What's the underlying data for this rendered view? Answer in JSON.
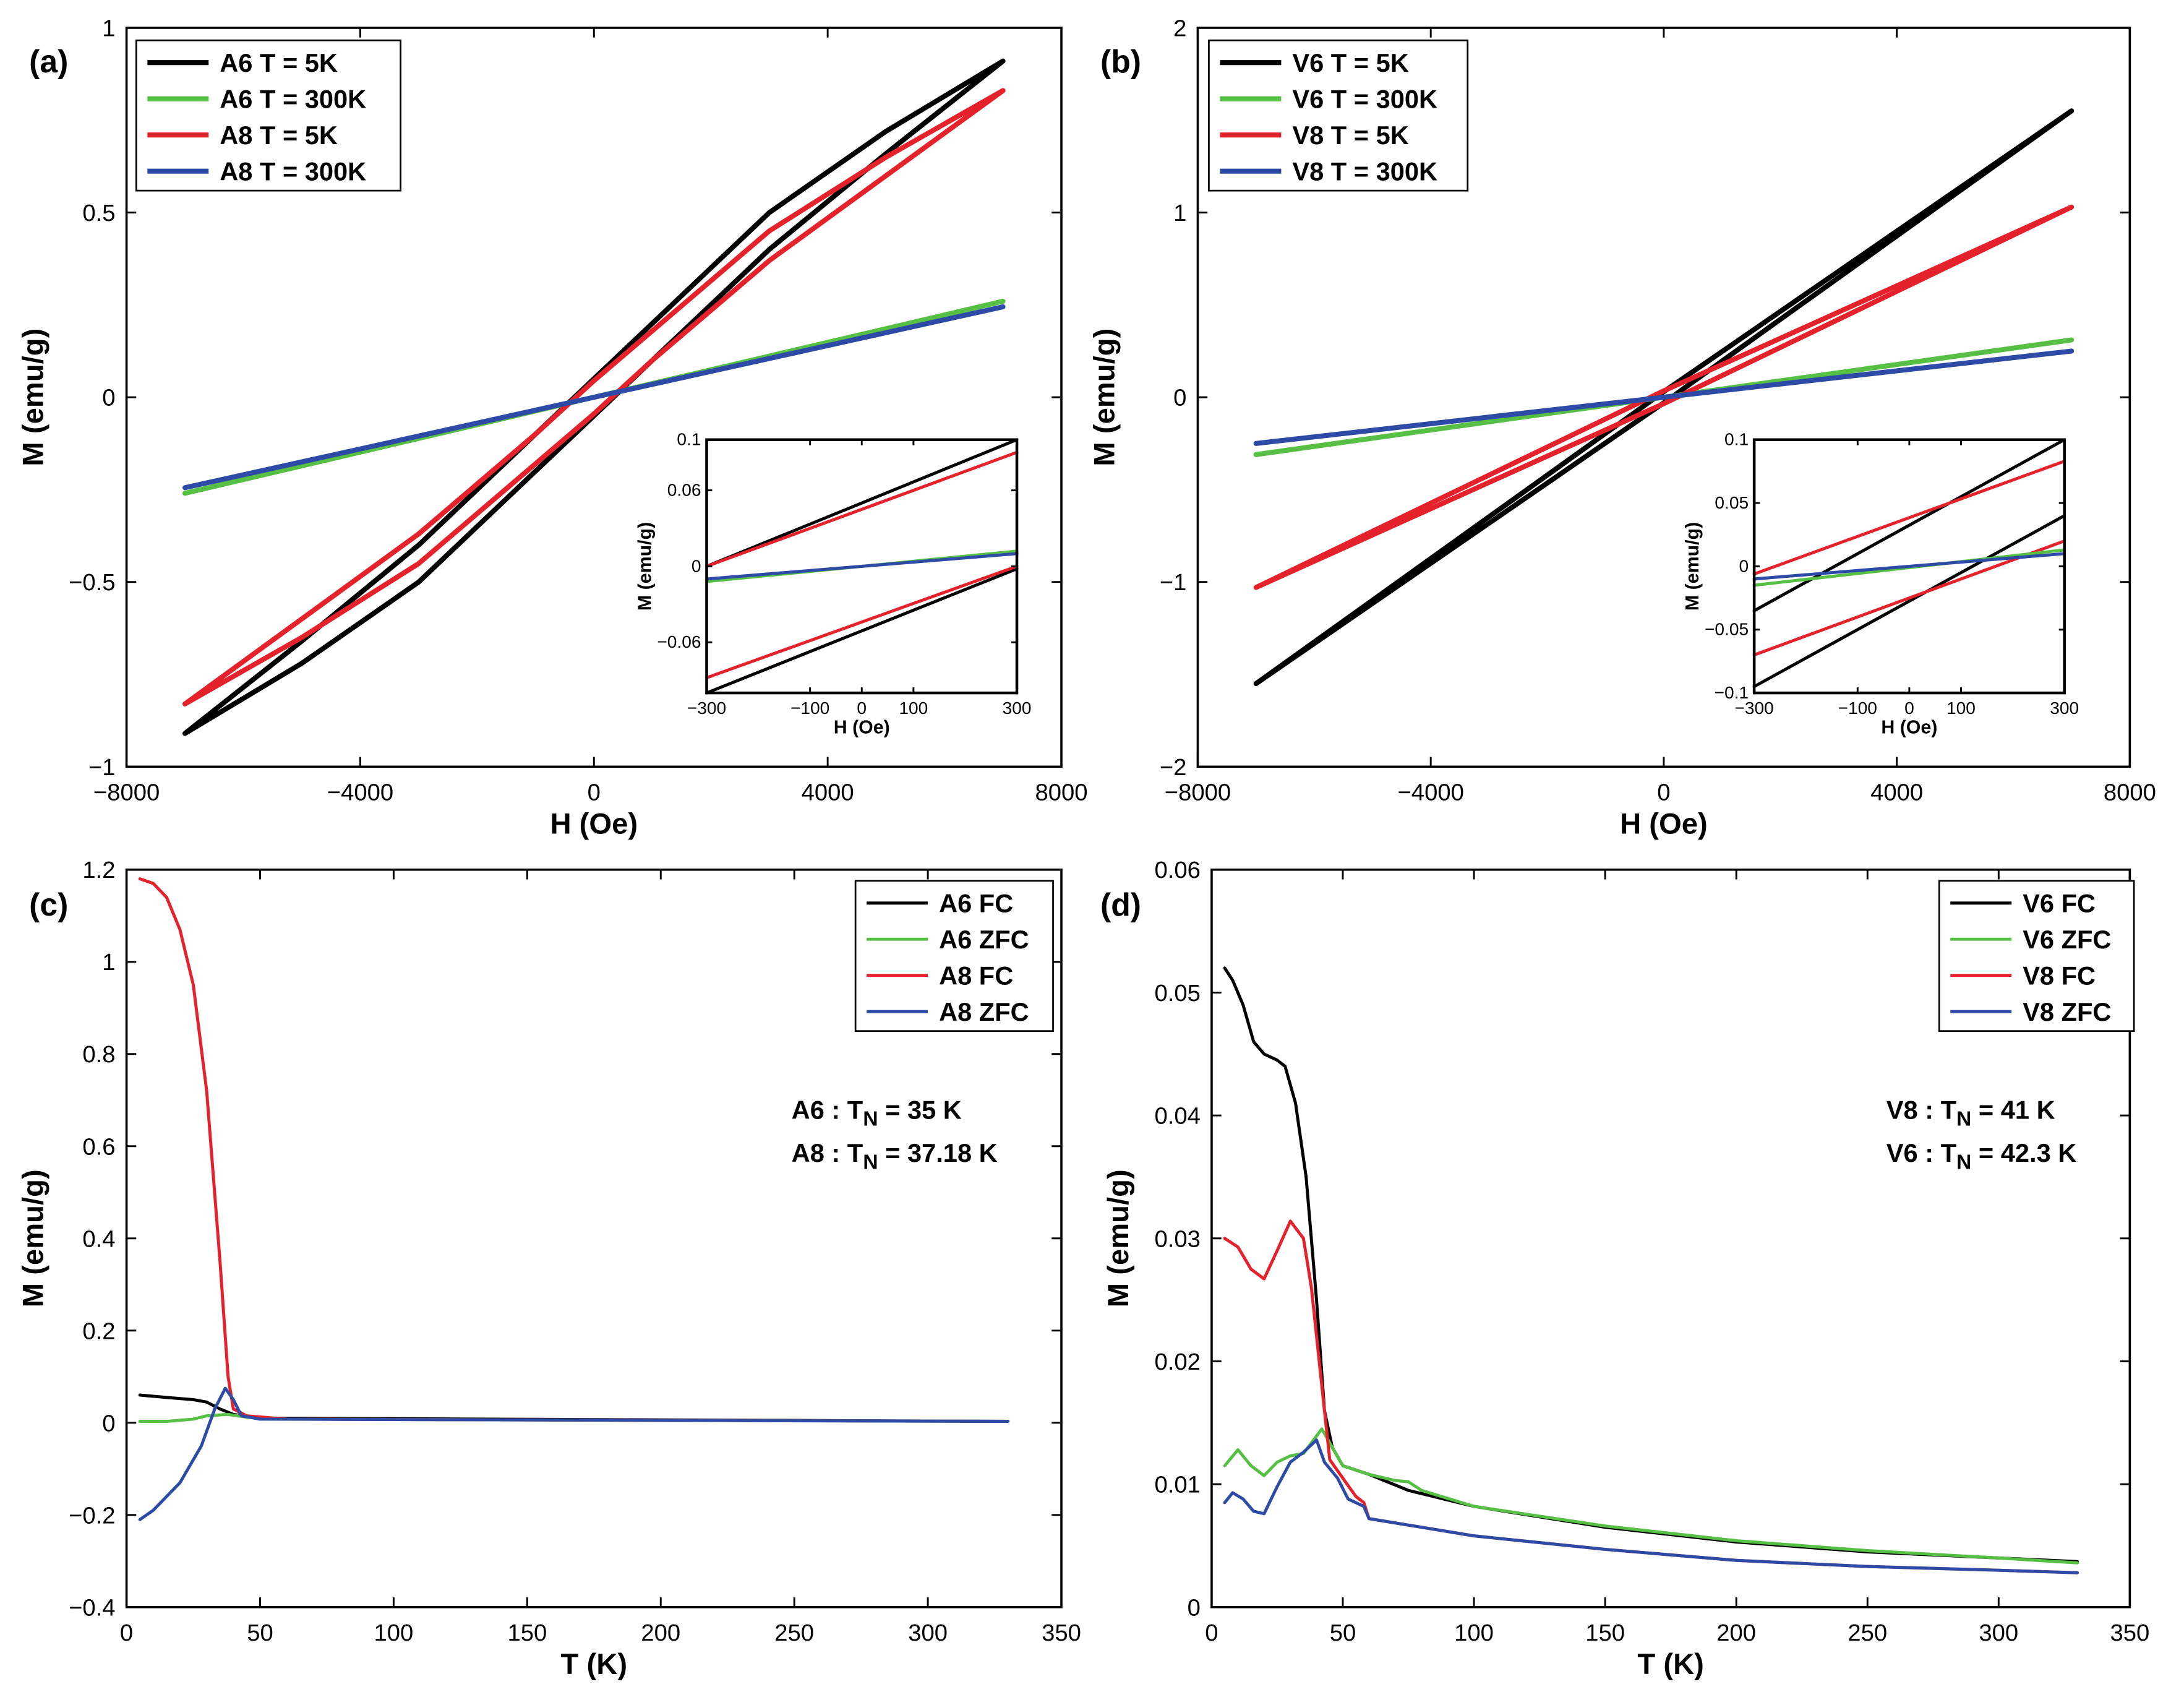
{
  "colors": {
    "black": "#000000",
    "green": "#55c043",
    "red": "#e5222b",
    "blue": "#2c4aa6"
  },
  "chart_data": [
    {
      "id": "a",
      "panel_label": "(a)",
      "type": "line",
      "xlabel": "H (Oe)",
      "ylabel": "M (emu/g)",
      "xlim": [
        -8000,
        8000
      ],
      "ylim": [
        -1,
        1
      ],
      "xticks": [
        -8000,
        -4000,
        0,
        4000,
        8000
      ],
      "xticklabels": [
        "−8000",
        "−4000",
        "0",
        "4000",
        "8000"
      ],
      "yticks": [
        -1,
        -0.5,
        0,
        0.5,
        1
      ],
      "yticklabels": [
        "−1",
        "−0.5",
        "0",
        "0.5",
        "1"
      ],
      "legend": "top-left",
      "series": [
        {
          "name": "A6 T = 5K",
          "color": "black",
          "x": [
            7000,
            5000,
            3000,
            1000,
            0,
            -1000,
            -3000,
            -5000,
            -7000,
            -5000,
            -3000,
            -1000,
            0,
            1000,
            3000,
            5000,
            7000
          ],
          "y": [
            0.91,
            0.72,
            0.5,
            0.2,
            0.05,
            -0.1,
            -0.4,
            -0.66,
            -0.91,
            -0.72,
            -0.5,
            -0.2,
            -0.05,
            0.1,
            0.4,
            0.66,
            0.91
          ]
        },
        {
          "name": "A6 T = 300K",
          "color": "green",
          "x": [
            -7000,
            7000
          ],
          "y": [
            -0.26,
            0.26
          ]
        },
        {
          "name": "A8 T = 5K",
          "color": "red",
          "x": [
            7000,
            5000,
            3000,
            1000,
            0,
            -1000,
            -3000,
            -5000,
            -7000,
            -5000,
            -3000,
            -1000,
            0,
            1000,
            3000,
            5000,
            7000
          ],
          "y": [
            0.83,
            0.65,
            0.45,
            0.18,
            0.045,
            -0.1,
            -0.37,
            -0.6,
            -0.83,
            -0.65,
            -0.45,
            -0.18,
            -0.045,
            0.1,
            0.37,
            0.6,
            0.83
          ]
        },
        {
          "name": "A8 T = 300K",
          "color": "blue",
          "x": [
            -7000,
            7000
          ],
          "y": [
            -0.245,
            0.245
          ]
        }
      ],
      "inset": {
        "xlabel": "H (Oe)",
        "ylabel": "M (emu/g)",
        "xlim": [
          -300,
          300
        ],
        "ylim": [
          -0.1,
          0.1
        ],
        "xticks": [
          -300,
          -100,
          0,
          100,
          300
        ],
        "xticklabels": [
          "−300",
          "−100",
          "0",
          "100",
          "300"
        ],
        "yticks": [
          -0.06,
          0,
          0.06,
          0.1
        ],
        "yticklabels": [
          "−0.06",
          "0",
          "0.06",
          "0.1"
        ],
        "series": [
          {
            "name": "A6 T = 5K upper",
            "color": "black",
            "x": [
              -300,
              300
            ],
            "y": [
              0.0,
              0.1
            ]
          },
          {
            "name": "A6 T = 5K lower",
            "color": "black",
            "x": [
              -300,
              300
            ],
            "y": [
              -0.1,
              -0.002
            ]
          },
          {
            "name": "A8 T = 5K upper",
            "color": "red",
            "x": [
              -300,
              300
            ],
            "y": [
              0.0,
              0.09
            ]
          },
          {
            "name": "A8 T = 5K lower",
            "color": "red",
            "x": [
              -300,
              300
            ],
            "y": [
              -0.088,
              0.0
            ]
          },
          {
            "name": "A6 T = 300K",
            "color": "green",
            "x": [
              -300,
              300
            ],
            "y": [
              -0.012,
              0.012
            ]
          },
          {
            "name": "A8 T = 300K",
            "color": "blue",
            "x": [
              -300,
              300
            ],
            "y": [
              -0.01,
              0.01
            ]
          }
        ]
      }
    },
    {
      "id": "b",
      "panel_label": "(b)",
      "type": "line",
      "xlabel": "H (Oe)",
      "ylabel": "M (emu/g)",
      "xlim": [
        -8000,
        8000
      ],
      "ylim": [
        -2,
        2
      ],
      "xticks": [
        -8000,
        -4000,
        0,
        4000,
        8000
      ],
      "xticklabels": [
        "−8000",
        "−4000",
        "0",
        "4000",
        "8000"
      ],
      "yticks": [
        -2,
        -1,
        0,
        1,
        2
      ],
      "yticklabels": [
        "−2",
        "−1",
        "0",
        "1",
        "2"
      ],
      "legend": "top-left",
      "series": [
        {
          "name": "V6 T = 5K",
          "color": "black",
          "x": [
            7000,
            0,
            -7000,
            0,
            7000
          ],
          "y": [
            1.55,
            0.03,
            -1.55,
            -0.03,
            1.55
          ]
        },
        {
          "name": "V6 T = 300K",
          "color": "green",
          "x": [
            -7000,
            7000
          ],
          "y": [
            -0.31,
            0.31
          ]
        },
        {
          "name": "V8 T = 5K",
          "color": "red",
          "x": [
            7000,
            0,
            -7000,
            0,
            7000
          ],
          "y": [
            1.03,
            0.035,
            -1.03,
            -0.035,
            1.03
          ]
        },
        {
          "name": "V8 T = 300K",
          "color": "blue",
          "x": [
            -7000,
            7000
          ],
          "y": [
            -0.25,
            0.25
          ]
        }
      ],
      "inset": {
        "xlabel": "H (Oe)",
        "ylabel": "M (emu/g)",
        "xlim": [
          -300,
          300
        ],
        "ylim": [
          -0.1,
          0.1
        ],
        "xticks": [
          -300,
          -100,
          0,
          100,
          300
        ],
        "xticklabels": [
          "−300",
          "−100",
          "0",
          "100",
          "300"
        ],
        "yticks": [
          -0.1,
          -0.05,
          0,
          0.05,
          0.1
        ],
        "yticklabels": [
          "−0.1",
          "−0.05",
          "0",
          "0.05",
          "0.1"
        ],
        "series": [
          {
            "name": "V6 T = 5K upper",
            "color": "black",
            "x": [
              -300,
              300
            ],
            "y": [
              -0.035,
              0.1
            ]
          },
          {
            "name": "V6 T = 5K lower",
            "color": "black",
            "x": [
              -300,
              300
            ],
            "y": [
              -0.095,
              0.04
            ]
          },
          {
            "name": "V8 T = 5K upper",
            "color": "red",
            "x": [
              -300,
              300
            ],
            "y": [
              -0.006,
              0.083
            ]
          },
          {
            "name": "V8 T = 5K lower",
            "color": "red",
            "x": [
              -300,
              300
            ],
            "y": [
              -0.07,
              0.02
            ]
          },
          {
            "name": "V6 T = 300K",
            "color": "green",
            "x": [
              -300,
              300
            ],
            "y": [
              -0.015,
              0.013
            ]
          },
          {
            "name": "V8 T = 300K",
            "color": "blue",
            "x": [
              -300,
              300
            ],
            "y": [
              -0.01,
              0.01
            ]
          }
        ]
      }
    },
    {
      "id": "c",
      "panel_label": "(c)",
      "type": "line",
      "xlabel": "T (K)",
      "ylabel": "M (emu/g)",
      "xlim": [
        0,
        350
      ],
      "ylim": [
        -0.4,
        1.2
      ],
      "xticks": [
        0,
        50,
        100,
        150,
        200,
        250,
        300,
        350
      ],
      "xticklabels": [
        "0",
        "50",
        "100",
        "150",
        "200",
        "250",
        "300",
        "350"
      ],
      "yticks": [
        -0.4,
        -0.2,
        0,
        0.2,
        0.4,
        0.6,
        0.8,
        1,
        1.2
      ],
      "yticklabels": [
        "−0.4",
        "−0.2",
        "0",
        "0.2",
        "0.4",
        "0.6",
        "0.8",
        "1",
        "1.2"
      ],
      "legend": "top-right",
      "annotations": [
        {
          "sample": "A6 : T",
          "sub": "N",
          "rest": " = 35 K"
        },
        {
          "sample": "A8 : T",
          "sub": "N",
          "rest": " = 37.18 K"
        }
      ],
      "series": [
        {
          "name": "A6 FC",
          "color": "black",
          "x": [
            5,
            15,
            25,
            30,
            35,
            40,
            50,
            330
          ],
          "y": [
            0.06,
            0.055,
            0.05,
            0.045,
            0.03,
            0.018,
            0.01,
            0.003
          ]
        },
        {
          "name": "A6 ZFC",
          "color": "green",
          "x": [
            5,
            15,
            25,
            30,
            38,
            45,
            60,
            330
          ],
          "y": [
            0.003,
            0.003,
            0.008,
            0.015,
            0.018,
            0.012,
            0.008,
            0.003
          ]
        },
        {
          "name": "A8 FC",
          "color": "red",
          "x": [
            5,
            10,
            15,
            20,
            25,
            30,
            35,
            38,
            40,
            45,
            60,
            330
          ],
          "y": [
            1.18,
            1.17,
            1.14,
            1.07,
            0.95,
            0.72,
            0.35,
            0.1,
            0.03,
            0.015,
            0.008,
            0.003
          ]
        },
        {
          "name": "A8 ZFC",
          "color": "blue",
          "x": [
            5,
            10,
            20,
            28,
            33,
            37,
            40,
            43,
            50,
            330
          ],
          "y": [
            -0.21,
            -0.19,
            -0.13,
            -0.05,
            0.03,
            0.075,
            0.05,
            0.015,
            0.008,
            0.003
          ]
        }
      ]
    },
    {
      "id": "d",
      "panel_label": "(d)",
      "type": "line",
      "xlabel": "T (K)",
      "ylabel": "M (emu/g)",
      "xlim": [
        0,
        350
      ],
      "ylim": [
        0,
        0.06
      ],
      "xticks": [
        0,
        50,
        100,
        150,
        200,
        250,
        300,
        350
      ],
      "xticklabels": [
        "0",
        "50",
        "100",
        "150",
        "200",
        "250",
        "300",
        "350"
      ],
      "yticks": [
        0,
        0.01,
        0.02,
        0.03,
        0.04,
        0.05,
        0.06
      ],
      "yticklabels": [
        "0",
        "0.01",
        "0.02",
        "0.03",
        "0.04",
        "0.05",
        "0.06"
      ],
      "legend": "top-right",
      "annotations": [
        {
          "sample": "V8 : T",
          "sub": "N",
          "rest": " = 41 K"
        },
        {
          "sample": "V6 : T",
          "sub": "N",
          "rest": " = 42.3 K"
        }
      ],
      "series": [
        {
          "name": "V6 FC",
          "color": "black",
          "x": [
            5,
            8,
            12,
            16,
            20,
            25,
            28,
            32,
            36,
            40,
            43,
            46,
            50,
            60,
            75,
            100,
            150,
            200,
            250,
            300,
            330
          ],
          "y": [
            0.052,
            0.051,
            0.049,
            0.046,
            0.045,
            0.0445,
            0.044,
            0.041,
            0.035,
            0.025,
            0.016,
            0.013,
            0.0115,
            0.0108,
            0.0095,
            0.0082,
            0.0065,
            0.0053,
            0.0045,
            0.004,
            0.0037
          ]
        },
        {
          "name": "V6 ZFC",
          "color": "green",
          "x": [
            5,
            10,
            15,
            20,
            25,
            30,
            35,
            42,
            46,
            50,
            60,
            70,
            75,
            80,
            100,
            150,
            200,
            250,
            300,
            330
          ],
          "y": [
            0.0115,
            0.0128,
            0.0115,
            0.0107,
            0.0118,
            0.0123,
            0.0125,
            0.0145,
            0.013,
            0.0115,
            0.0108,
            0.0103,
            0.0102,
            0.0095,
            0.0082,
            0.0066,
            0.0054,
            0.0046,
            0.004,
            0.0036
          ]
        },
        {
          "name": "V8 FC",
          "color": "red",
          "x": [
            5,
            10,
            15,
            20,
            25,
            30,
            35,
            38,
            42,
            45,
            50,
            55,
            58,
            60,
            80,
            100,
            150,
            200,
            250,
            300,
            330
          ],
          "y": [
            0.03,
            0.0293,
            0.0275,
            0.0267,
            0.029,
            0.0314,
            0.03,
            0.026,
            0.018,
            0.012,
            0.0105,
            0.009,
            0.0085,
            0.0072,
            0.0065,
            0.0058,
            0.0047,
            0.0038,
            0.0033,
            0.003,
            0.0028
          ]
        },
        {
          "name": "V8 ZFC",
          "color": "blue",
          "x": [
            5,
            8,
            12,
            16,
            20,
            25,
            30,
            35,
            40,
            43,
            48,
            52,
            58,
            60,
            80,
            100,
            150,
            200,
            250,
            300,
            330
          ],
          "y": [
            0.0085,
            0.0093,
            0.0088,
            0.0078,
            0.0076,
            0.0098,
            0.0118,
            0.0126,
            0.0136,
            0.0118,
            0.0105,
            0.0088,
            0.0082,
            0.0072,
            0.0065,
            0.0058,
            0.0047,
            0.0038,
            0.0033,
            0.003,
            0.0028
          ]
        }
      ]
    }
  ]
}
